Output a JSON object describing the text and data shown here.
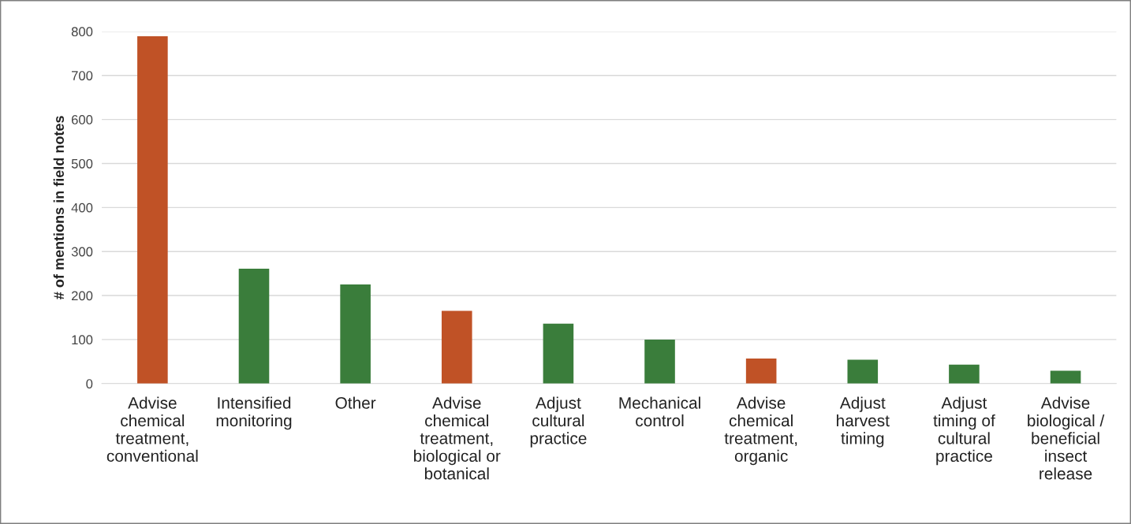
{
  "chart_data": {
    "type": "bar",
    "ylabel": "# of mentions in field notes",
    "categories": [
      "Advise\nchemical\ntreatment,\nconventional",
      "Intensified\nmonitoring",
      "Other",
      "Advise\nchemical\ntreatment,\nbiological or\nbotanical",
      "Adjust\ncultural\npractice",
      "Mechanical\ncontrol",
      "Advise\nchemical\ntreatment,\norganic",
      "Adjust\nharvest\ntiming",
      "Adjust\ntiming of\ncultural\npractice",
      "Advise\nbiological /\nbeneficial\ninsect\nrelease"
    ],
    "values": [
      789,
      261,
      225,
      165,
      136,
      100,
      57,
      54,
      43,
      29
    ],
    "colors": [
      "#c05226",
      "#3a7d3b",
      "#3a7d3b",
      "#c05226",
      "#3a7d3b",
      "#3a7d3b",
      "#c05226",
      "#3a7d3b",
      "#3a7d3b",
      "#3a7d3b"
    ],
    "ylim": [
      0,
      800
    ],
    "yticks": [
      0,
      100,
      200,
      300,
      400,
      500,
      600,
      700,
      800
    ],
    "grid": "y"
  }
}
